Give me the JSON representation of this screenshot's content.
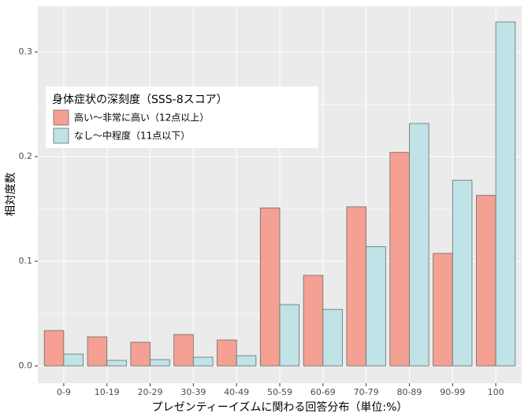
{
  "chart_data": {
    "type": "bar",
    "x_label": "プレゼンティーイズムに関わる回答分布（単位:%）",
    "y_label": "相対度数",
    "legend_title": "身体症状の深刻度（SSS-8スコア）",
    "categories": [
      "0-9",
      "10-19",
      "20-29",
      "30-39",
      "40-49",
      "50-59",
      "60-69",
      "70-79",
      "80-89",
      "90-99",
      "100"
    ],
    "series": [
      {
        "name": "高い～非常に高い（12点以上）",
        "color": "#F4A093",
        "values": [
          0.0338,
          0.0278,
          0.0226,
          0.03,
          0.0248,
          0.151,
          0.0865,
          0.152,
          0.204,
          0.1075,
          0.163
        ]
      },
      {
        "name": "なし～中程度（11点以下）",
        "color": "#BFE3E7",
        "values": [
          0.0113,
          0.0053,
          0.006,
          0.0083,
          0.0098,
          0.0586,
          0.054,
          0.114,
          0.2316,
          0.1774,
          0.3286
        ]
      }
    ],
    "ylim": [
      -0.0165,
      0.3436
    ],
    "yticks": [
      {
        "value": 0,
        "label": "0.0"
      },
      0.1,
      0.2,
      0.3
    ],
    "grid": true
  }
}
